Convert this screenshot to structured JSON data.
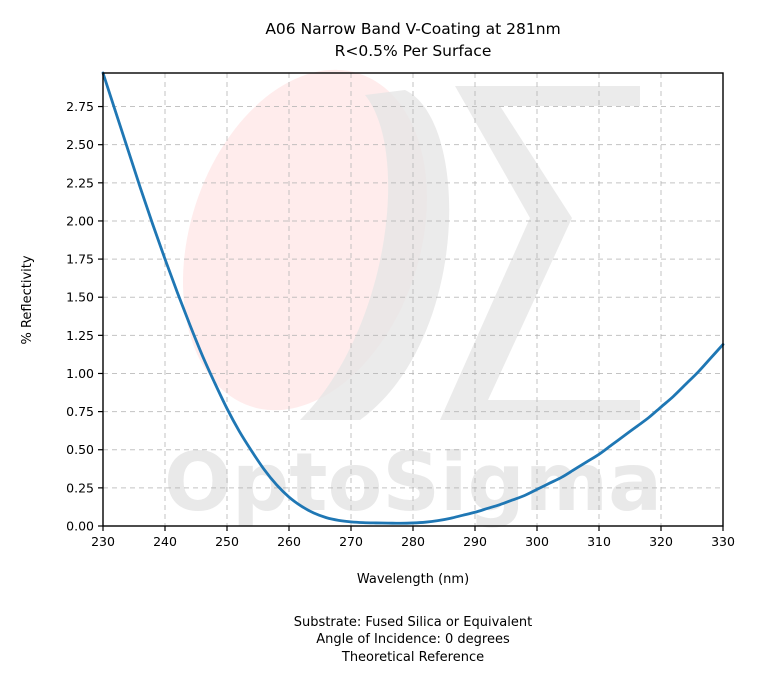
{
  "chart_data": {
    "type": "line",
    "title": "A06 Narrow Band V-Coating at 281nm",
    "subtitle": "R<0.5% Per Surface",
    "xlabel": "Wavelength (nm)",
    "ylabel": "% Reflectivity",
    "xlim": [
      230,
      330
    ],
    "ylim": [
      0,
      2.97
    ],
    "xticks": [
      "230",
      "240",
      "250",
      "260",
      "270",
      "280",
      "290",
      "300",
      "310",
      "320",
      "330"
    ],
    "yticks": [
      "0.00",
      "0.25",
      "0.50",
      "0.75",
      "1.00",
      "1.25",
      "1.50",
      "1.75",
      "2.00",
      "2.25",
      "2.50",
      "2.75"
    ],
    "grid": true,
    "series": [
      {
        "x": [
          230,
          232,
          234,
          236,
          238,
          240,
          242,
          244,
          246,
          248,
          250,
          252,
          254,
          256,
          258,
          260,
          262,
          264,
          266,
          268,
          270,
          272,
          274,
          276,
          278,
          280,
          282,
          284,
          286,
          288,
          290,
          292,
          294,
          296,
          298,
          300,
          302,
          304,
          306,
          308,
          310,
          312,
          314,
          316,
          318,
          320,
          322,
          324,
          326,
          328,
          330
        ],
        "y": [
          2.97,
          2.72,
          2.47,
          2.22,
          1.98,
          1.75,
          1.53,
          1.32,
          1.12,
          0.94,
          0.77,
          0.62,
          0.49,
          0.37,
          0.27,
          0.19,
          0.13,
          0.085,
          0.055,
          0.037,
          0.027,
          0.022,
          0.02,
          0.019,
          0.018,
          0.02,
          0.025,
          0.035,
          0.05,
          0.07,
          0.09,
          0.115,
          0.14,
          0.17,
          0.2,
          0.24,
          0.28,
          0.32,
          0.37,
          0.42,
          0.47,
          0.53,
          0.59,
          0.65,
          0.71,
          0.78,
          0.85,
          0.93,
          1.01,
          1.1,
          1.19
        ]
      }
    ],
    "color": "#1f77b4",
    "footnotes": [
      "Substrate: Fused Silica or Equivalent",
      "Angle of Incidence: 0 degrees",
      "Theoretical Reference"
    ],
    "watermark": "OptoSigma"
  }
}
